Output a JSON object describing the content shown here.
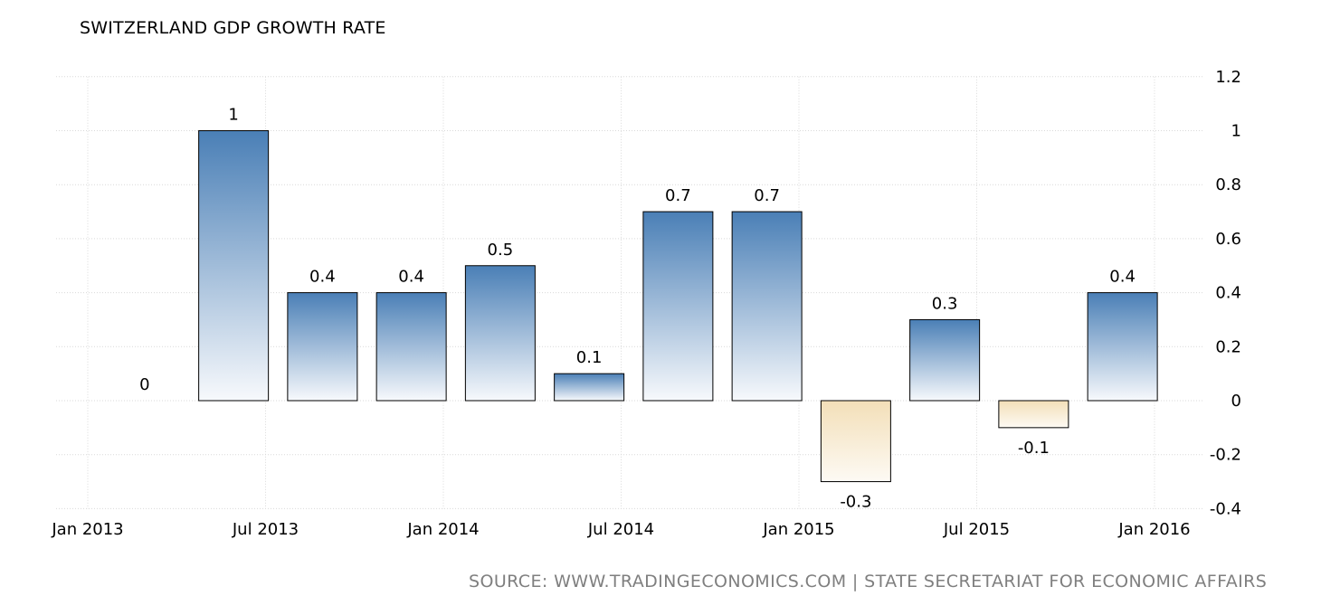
{
  "chart_data": {
    "type": "bar",
    "title": "SWITZERLAND GDP GROWTH RATE",
    "source": "SOURCE:  WWW.TRADINGECONOMICS.COM  |  STATE SECRETARIAT FOR ECONOMIC AFFAIRS",
    "x": [
      "2013-Q1",
      "2013-Q2",
      "2013-Q3",
      "2013-Q4",
      "2014-Q1",
      "2014-Q2",
      "2014-Q3",
      "2014-Q4",
      "2015-Q1",
      "2015-Q2",
      "2015-Q3",
      "2015-Q4"
    ],
    "values": [
      0,
      1,
      0.4,
      0.4,
      0.5,
      0.1,
      0.7,
      0.7,
      -0.3,
      0.3,
      -0.1,
      0.4
    ],
    "data_labels": [
      "0",
      "1",
      "0.4",
      "0.4",
      "0.5",
      "0.1",
      "0.7",
      "0.7",
      "-0.3",
      "0.3",
      "-0.1",
      "0.4"
    ],
    "x_ticks": [
      "Jan 2013",
      "Jul 2013",
      "Jan 2014",
      "Jul 2014",
      "Jan 2015",
      "Jul 2015",
      "Jan 2016"
    ],
    "y_ticks": [
      "-0.4",
      "-0.2",
      "0",
      "0.2",
      "0.4",
      "0.6",
      "0.8",
      "1",
      "1.2"
    ],
    "ylim": [
      -0.4,
      1.2
    ],
    "y_axis_side": "right",
    "grid": true,
    "legend": "none",
    "colors": {
      "positive_top": "#4a7fb6",
      "positive_bottom": "#f7f9fc",
      "negative_top": "#f3dfb8",
      "negative_bottom": "#fdfaf4",
      "bar_border": "#000000",
      "grid": "#d9d9d9",
      "source_text": "#7f7f7f"
    }
  }
}
